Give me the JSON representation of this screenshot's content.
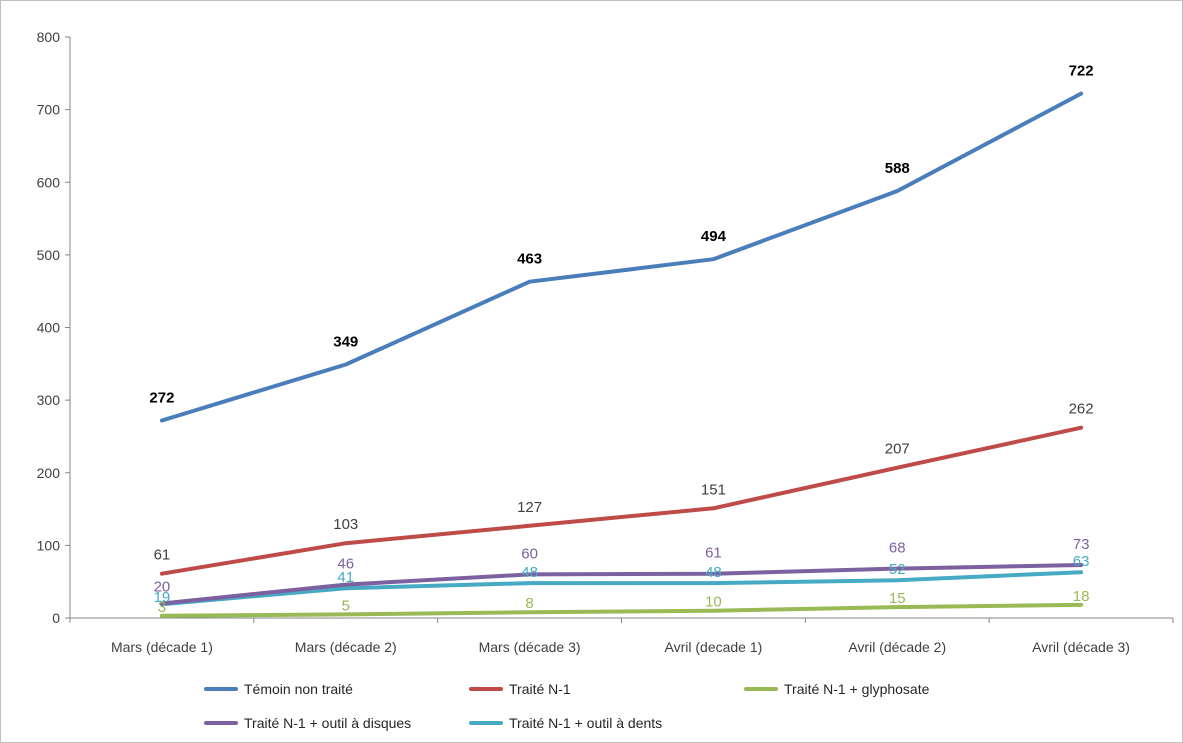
{
  "chart_data": {
    "type": "line",
    "title": "",
    "xlabel": "",
    "ylabel": "",
    "ylim": [
      0,
      800
    ],
    "yticks": [
      0,
      100,
      200,
      300,
      400,
      500,
      600,
      700,
      800
    ],
    "grid": false,
    "legend_position": "bottom",
    "categories": [
      "Mars (décade 1)",
      "Mars (décade 2)",
      "Mars (décade 3)",
      "Avril (decade 1)",
      "Avril (décade 2)",
      "Avril (décade 3)"
    ],
    "series": [
      {
        "name": "Témoin non traité",
        "color": "#4a7ebb",
        "label_color": "#000000",
        "label_bold": true,
        "values": [
          272,
          349,
          463,
          494,
          588,
          722
        ],
        "labels": [
          "272",
          "349",
          "463",
          "494",
          "588",
          "722"
        ]
      },
      {
        "name": "Traité N-1",
        "color": "#be4b48",
        "label_color": "#404040",
        "label_bold": false,
        "values": [
          61,
          103,
          127,
          151,
          207,
          262
        ],
        "labels": [
          "61",
          "103",
          "127",
          "151",
          "207",
          "262"
        ]
      },
      {
        "name": "Traité N-1 + glyphosate",
        "color": "#98b954",
        "label_color": "#98b954",
        "label_bold": false,
        "values": [
          3,
          5,
          8,
          10,
          15,
          18
        ],
        "labels": [
          "3",
          "5",
          "8",
          "10",
          "15",
          "18"
        ]
      },
      {
        "name": "Traité N-1 + outil à disques",
        "color": "#7d60a0",
        "label_color": "#7d60a0",
        "label_bold": false,
        "values": [
          20,
          46,
          60,
          61,
          68,
          73
        ],
        "labels": [
          "20",
          "46",
          "60",
          "61",
          "68",
          "73"
        ]
      },
      {
        "name": "Traité N-1 + outil à dents",
        "color": "#46aac5",
        "label_color": "#46aac5",
        "label_bold": false,
        "values": [
          19,
          41,
          48,
          48,
          52,
          63
        ],
        "labels": [
          "19",
          "41",
          "48",
          "48",
          "52",
          "63"
        ]
      }
    ]
  }
}
